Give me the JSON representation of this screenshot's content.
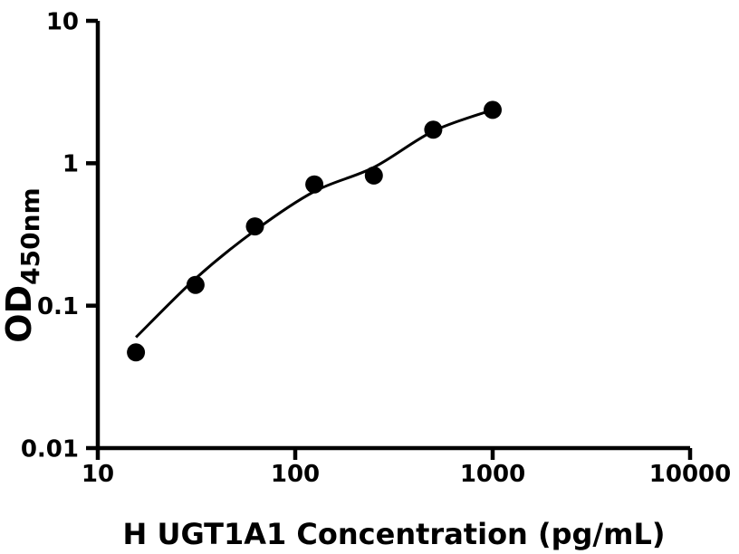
{
  "figure": {
    "background_color": "#ffffff",
    "ink_color": "#000000"
  },
  "chart_data": {
    "type": "scatter",
    "title": "",
    "xlabel": "H UGT1A1 Concentration (pg/mL)",
    "ylabel": {
      "main": "OD",
      "subscript": "450nm"
    },
    "x_scale": "log10",
    "y_scale": "log10",
    "xlim": [
      10,
      10000
    ],
    "ylim": [
      0.01,
      10
    ],
    "grid": false,
    "legend": null,
    "x_ticks": [
      {
        "value": 10,
        "label": "10"
      },
      {
        "value": 100,
        "label": "100"
      },
      {
        "value": 1000,
        "label": "1000"
      },
      {
        "value": 10000,
        "label": "10000"
      }
    ],
    "y_ticks": [
      {
        "value": 10,
        "label": "10"
      },
      {
        "value": 1,
        "label": "1"
      },
      {
        "value": 0.1,
        "label": "0.1"
      },
      {
        "value": 0.01,
        "label": "0.01"
      }
    ],
    "series": [
      {
        "name": "standard-data-points",
        "role": "points",
        "marker": "filled-circle",
        "color": "#000000",
        "x": [
          15.6,
          31.25,
          62.5,
          125,
          250,
          500,
          1000
        ],
        "y": [
          0.047,
          0.14,
          0.36,
          0.71,
          0.82,
          1.72,
          2.37
        ]
      },
      {
        "name": "fitted-standard-curve",
        "role": "fit-line",
        "color": "#000000",
        "x": [
          15.6,
          31.25,
          62.5,
          125,
          250,
          500,
          1000
        ],
        "y": [
          0.06,
          0.155,
          0.337,
          0.634,
          0.935,
          1.68,
          2.37
        ]
      }
    ]
  }
}
